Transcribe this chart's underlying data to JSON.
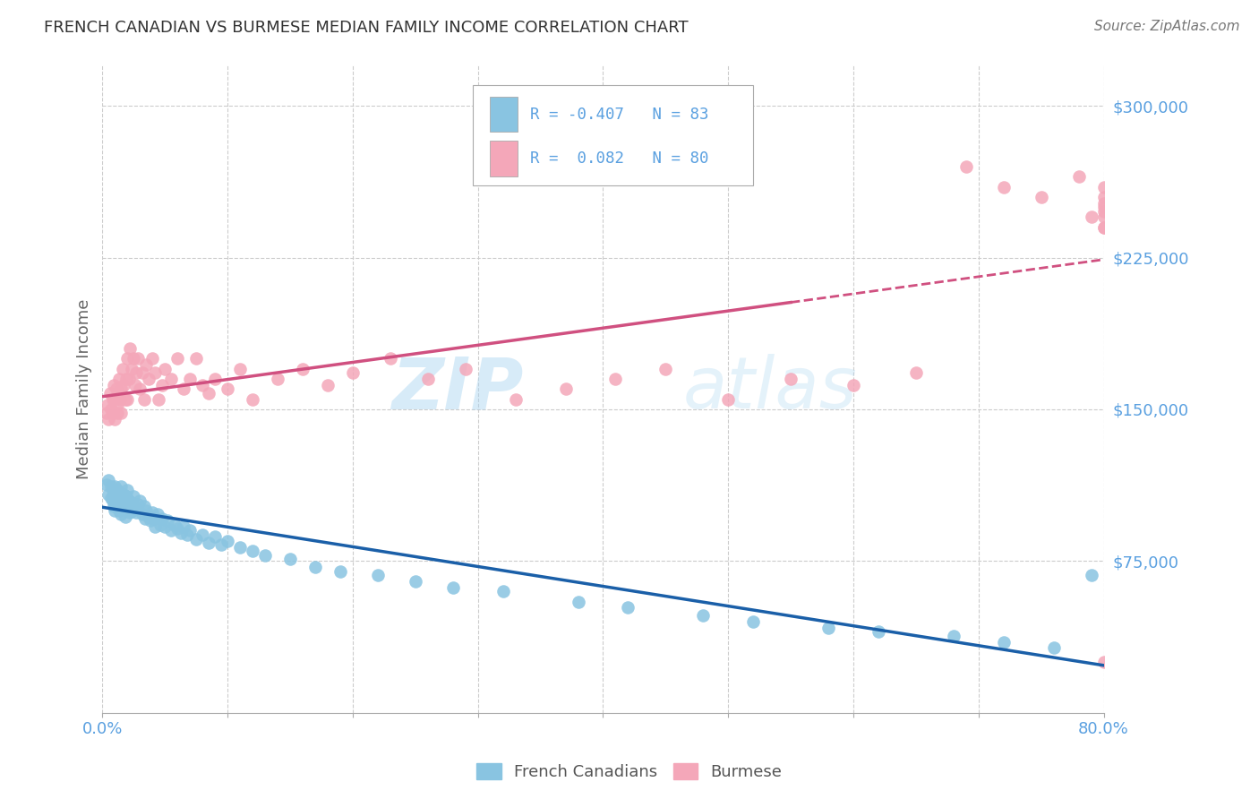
{
  "title": "FRENCH CANADIAN VS BURMESE MEDIAN FAMILY INCOME CORRELATION CHART",
  "source": "Source: ZipAtlas.com",
  "ylabel": "Median Family Income",
  "ylim": [
    0,
    320000
  ],
  "xlim": [
    0.0,
    0.8
  ],
  "yticks": [
    75000,
    150000,
    225000,
    300000
  ],
  "ytick_labels": [
    "$75,000",
    "$150,000",
    "$225,000",
    "$300,000"
  ],
  "watermark": "ZIPatlas",
  "legend_r1": "R = -0.407",
  "legend_n1": "N = 83",
  "legend_r2": "R =  0.082",
  "legend_n2": "N = 80",
  "blue_color": "#89c4e1",
  "pink_color": "#f4a7b9",
  "blue_line_color": "#1a5fa8",
  "pink_line_color": "#d05080",
  "axis_color": "#5aa0e0",
  "grid_color": "#cccccc",
  "background_color": "#ffffff",
  "blue_scatter_x": [
    0.003,
    0.005,
    0.005,
    0.007,
    0.007,
    0.008,
    0.008,
    0.009,
    0.009,
    0.01,
    0.01,
    0.01,
    0.012,
    0.012,
    0.013,
    0.013,
    0.014,
    0.015,
    0.015,
    0.015,
    0.016,
    0.017,
    0.018,
    0.018,
    0.019,
    0.02,
    0.02,
    0.021,
    0.022,
    0.023,
    0.024,
    0.025,
    0.026,
    0.027,
    0.028,
    0.03,
    0.032,
    0.033,
    0.034,
    0.035,
    0.037,
    0.038,
    0.04,
    0.041,
    0.042,
    0.044,
    0.046,
    0.048,
    0.05,
    0.052,
    0.055,
    0.058,
    0.06,
    0.063,
    0.065,
    0.068,
    0.07,
    0.075,
    0.08,
    0.085,
    0.09,
    0.095,
    0.1,
    0.11,
    0.12,
    0.13,
    0.15,
    0.17,
    0.19,
    0.22,
    0.25,
    0.28,
    0.32,
    0.38,
    0.42,
    0.48,
    0.52,
    0.58,
    0.62,
    0.68,
    0.72,
    0.76,
    0.79
  ],
  "blue_scatter_y": [
    113000,
    115000,
    108000,
    112000,
    106000,
    110000,
    105000,
    108000,
    102000,
    112000,
    107000,
    100000,
    110000,
    104000,
    108000,
    100000,
    105000,
    112000,
    106000,
    98000,
    104000,
    108000,
    103000,
    97000,
    107000,
    110000,
    102000,
    105000,
    99000,
    104000,
    100000,
    107000,
    101000,
    99000,
    103000,
    105000,
    98000,
    102000,
    96000,
    100000,
    97000,
    95000,
    99000,
    96000,
    92000,
    98000,
    93000,
    96000,
    92000,
    95000,
    90000,
    93000,
    91000,
    89000,
    92000,
    88000,
    90000,
    86000,
    88000,
    84000,
    87000,
    83000,
    85000,
    82000,
    80000,
    78000,
    76000,
    72000,
    70000,
    68000,
    65000,
    62000,
    60000,
    55000,
    52000,
    48000,
    45000,
    42000,
    40000,
    38000,
    35000,
    32000,
    68000
  ],
  "pink_scatter_x": [
    0.003,
    0.004,
    0.005,
    0.006,
    0.007,
    0.008,
    0.008,
    0.009,
    0.01,
    0.01,
    0.011,
    0.012,
    0.012,
    0.013,
    0.014,
    0.015,
    0.015,
    0.016,
    0.017,
    0.018,
    0.019,
    0.02,
    0.02,
    0.021,
    0.022,
    0.023,
    0.025,
    0.026,
    0.027,
    0.028,
    0.03,
    0.032,
    0.033,
    0.035,
    0.037,
    0.04,
    0.042,
    0.045,
    0.048,
    0.05,
    0.055,
    0.06,
    0.065,
    0.07,
    0.075,
    0.08,
    0.085,
    0.09,
    0.1,
    0.11,
    0.12,
    0.14,
    0.16,
    0.18,
    0.2,
    0.23,
    0.26,
    0.29,
    0.33,
    0.37,
    0.41,
    0.45,
    0.5,
    0.55,
    0.6,
    0.65,
    0.69,
    0.72,
    0.75,
    0.78,
    0.79,
    0.8,
    0.8,
    0.8,
    0.8,
    0.8,
    0.8,
    0.8,
    0.8,
    0.8
  ],
  "pink_scatter_y": [
    148000,
    152000,
    145000,
    158000,
    150000,
    155000,
    148000,
    162000,
    155000,
    145000,
    160000,
    152000,
    148000,
    165000,
    155000,
    160000,
    148000,
    170000,
    162000,
    155000,
    165000,
    175000,
    155000,
    165000,
    180000,
    170000,
    175000,
    162000,
    168000,
    175000,
    160000,
    168000,
    155000,
    172000,
    165000,
    175000,
    168000,
    155000,
    162000,
    170000,
    165000,
    175000,
    160000,
    165000,
    175000,
    162000,
    158000,
    165000,
    160000,
    170000,
    155000,
    165000,
    170000,
    162000,
    168000,
    175000,
    165000,
    170000,
    155000,
    160000,
    165000,
    170000,
    155000,
    165000,
    162000,
    168000,
    270000,
    260000,
    255000,
    265000,
    245000,
    250000,
    240000,
    245000,
    255000,
    260000,
    248000,
    252000,
    240000,
    25000
  ]
}
